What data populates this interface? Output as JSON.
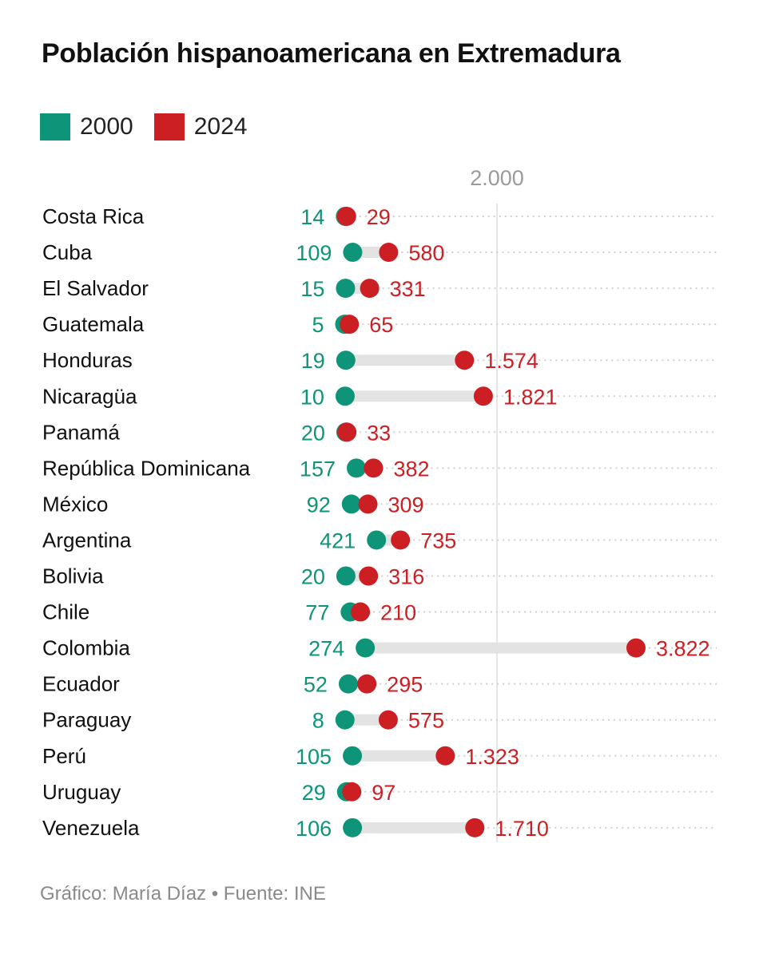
{
  "title": "Población hispanoamericana en Extremadura",
  "footer": "Gráfico: María Díaz • Fuente: INE",
  "colors": {
    "series_2000": "#0e9478",
    "series_2024": "#cc1f24",
    "connector": "#e3e3e3",
    "grid": "#e6e6e6",
    "dots": "#cfcfcf"
  },
  "chart_data": {
    "type": "dumbbell",
    "title": "Población hispanoamericana en Extremadura",
    "legend": "top-left",
    "series": [
      {
        "name": "2000",
        "color": "#0e9478"
      },
      {
        "name": "2024",
        "color": "#cc1f24"
      }
    ],
    "x_domain": [
      0,
      3822
    ],
    "x_ticks": [
      {
        "value": 2000,
        "label": "2.000"
      }
    ],
    "rows": [
      {
        "category": "Costa Rica",
        "v2000": 14,
        "v2024": 29,
        "l2000": "14",
        "l2024": "29"
      },
      {
        "category": "Cuba",
        "v2000": 109,
        "v2024": 580,
        "l2000": "109",
        "l2024": "580"
      },
      {
        "category": "El Salvador",
        "v2000": 15,
        "v2024": 331,
        "l2000": "15",
        "l2024": "331"
      },
      {
        "category": "Guatemala",
        "v2000": 5,
        "v2024": 65,
        "l2000": "5",
        "l2024": "65"
      },
      {
        "category": "Honduras",
        "v2000": 19,
        "v2024": 1574,
        "l2000": "19",
        "l2024": "1.574"
      },
      {
        "category": "Nicaragüa",
        "v2000": 10,
        "v2024": 1821,
        "l2000": "10",
        "l2024": "1.821"
      },
      {
        "category": "Panamá",
        "v2000": 20,
        "v2024": 33,
        "l2000": "20",
        "l2024": "33"
      },
      {
        "category": "República Dominicana",
        "v2000": 157,
        "v2024": 382,
        "l2000": "157",
        "l2024": "382"
      },
      {
        "category": "México",
        "v2000": 92,
        "v2024": 309,
        "l2000": "92",
        "l2024": "309"
      },
      {
        "category": "Argentina",
        "v2000": 421,
        "v2024": 735,
        "l2000": "421",
        "l2024": "735"
      },
      {
        "category": "Bolivia",
        "v2000": 20,
        "v2024": 316,
        "l2000": "20",
        "l2024": "316"
      },
      {
        "category": "Chile",
        "v2000": 77,
        "v2024": 210,
        "l2000": "77",
        "l2024": "210"
      },
      {
        "category": "Colombia",
        "v2000": 274,
        "v2024": 3822,
        "l2000": "274",
        "l2024": "3.822"
      },
      {
        "category": "Ecuador",
        "v2000": 52,
        "v2024": 295,
        "l2000": "52",
        "l2024": "295"
      },
      {
        "category": "Paraguay",
        "v2000": 8,
        "v2024": 575,
        "l2000": "8",
        "l2024": "575"
      },
      {
        "category": "Perú",
        "v2000": 105,
        "v2024": 1323,
        "l2000": "105",
        "l2024": "1.323"
      },
      {
        "category": "Uruguay",
        "v2000": 29,
        "v2024": 97,
        "l2000": "29",
        "l2024": "97"
      },
      {
        "category": "Venezuela",
        "v2000": 106,
        "v2024": 1710,
        "l2000": "106",
        "l2024": "1.710"
      }
    ]
  }
}
